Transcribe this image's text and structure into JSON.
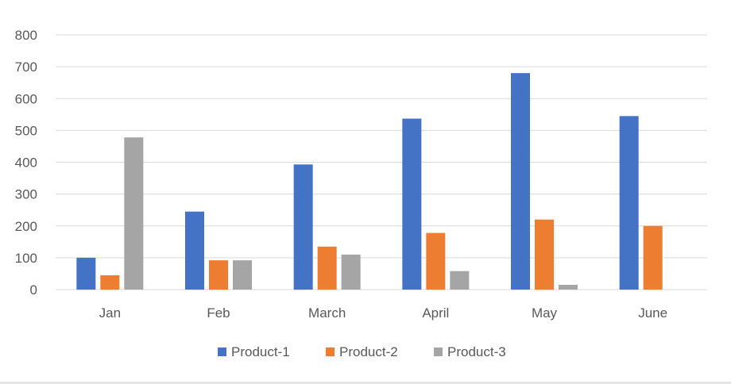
{
  "chart_data": {
    "type": "bar",
    "title": "",
    "xlabel": "",
    "ylabel": "",
    "categories": [
      "Jan",
      "Feb",
      "March",
      "April",
      "May",
      "June"
    ],
    "series": [
      {
        "name": "Product-1",
        "color": "#4472c4",
        "values": [
          100,
          245,
          393,
          537,
          680,
          545
        ]
      },
      {
        "name": "Product-2",
        "color": "#ed7d31",
        "values": [
          45,
          92,
          135,
          178,
          220,
          200
        ]
      },
      {
        "name": "Product-3",
        "color": "#a5a5a5",
        "values": [
          478,
          92,
          110,
          58,
          15,
          0
        ]
      }
    ],
    "ylim": [
      0,
      800
    ],
    "yticks": [
      "0",
      "100",
      "200",
      "300",
      "400",
      "500",
      "600",
      "700",
      "800"
    ],
    "grid": true,
    "legend_position": "bottom"
  }
}
